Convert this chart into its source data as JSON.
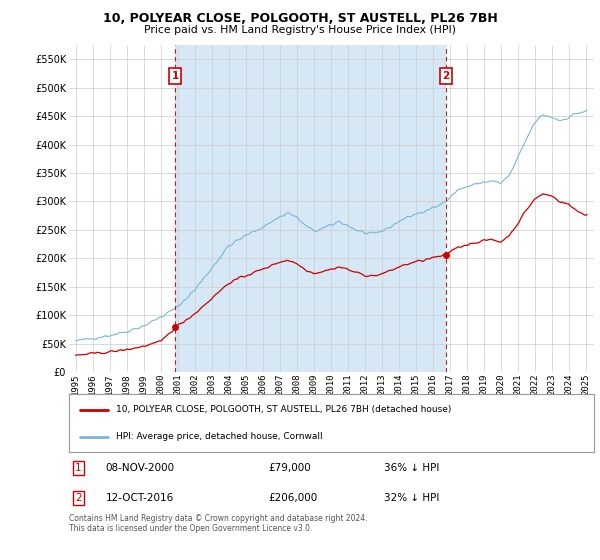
{
  "title": "10, POLYEAR CLOSE, POLGOOTH, ST AUSTELL, PL26 7BH",
  "subtitle": "Price paid vs. HM Land Registry's House Price Index (HPI)",
  "hpi_label": "HPI: Average price, detached house, Cornwall",
  "sale_label": "10, POLYEAR CLOSE, POLGOOTH, ST AUSTELL, PL26 7BH (detached house)",
  "hpi_color": "#7ab5d8",
  "sale_color": "#cc0000",
  "vline_color": "#cc0000",
  "annotation_box_color": "#cc0000",
  "shade_color": "#d6e8f5",
  "ylim": [
    0,
    575000
  ],
  "yticks": [
    0,
    50000,
    100000,
    150000,
    200000,
    250000,
    300000,
    350000,
    400000,
    450000,
    500000,
    550000
  ],
  "footnote": "Contains HM Land Registry data © Crown copyright and database right 2024.\nThis data is licensed under the Open Government Licence v3.0.",
  "sale1_date": 2000.854,
  "sale1_price": 79000,
  "sale1_label": "08-NOV-2000",
  "sale1_price_label": "£79,000",
  "sale1_pct_label": "36% ↓ HPI",
  "sale2_date": 2016.792,
  "sale2_price": 206000,
  "sale2_label": "12-OCT-2016",
  "sale2_price_label": "£206,000",
  "sale2_pct_label": "32% ↓ HPI",
  "xlim_left": 1994.6,
  "xlim_right": 2025.5,
  "xticks": [
    1995,
    1996,
    1997,
    1998,
    1999,
    2000,
    2001,
    2002,
    2003,
    2004,
    2005,
    2006,
    2007,
    2008,
    2009,
    2010,
    2011,
    2012,
    2013,
    2014,
    2015,
    2016,
    2017,
    2018,
    2019,
    2020,
    2021,
    2022,
    2023,
    2024,
    2025
  ],
  "bg_color": "#ffffff",
  "plot_bg_color": "#ffffff",
  "grid_color": "#cccccc"
}
